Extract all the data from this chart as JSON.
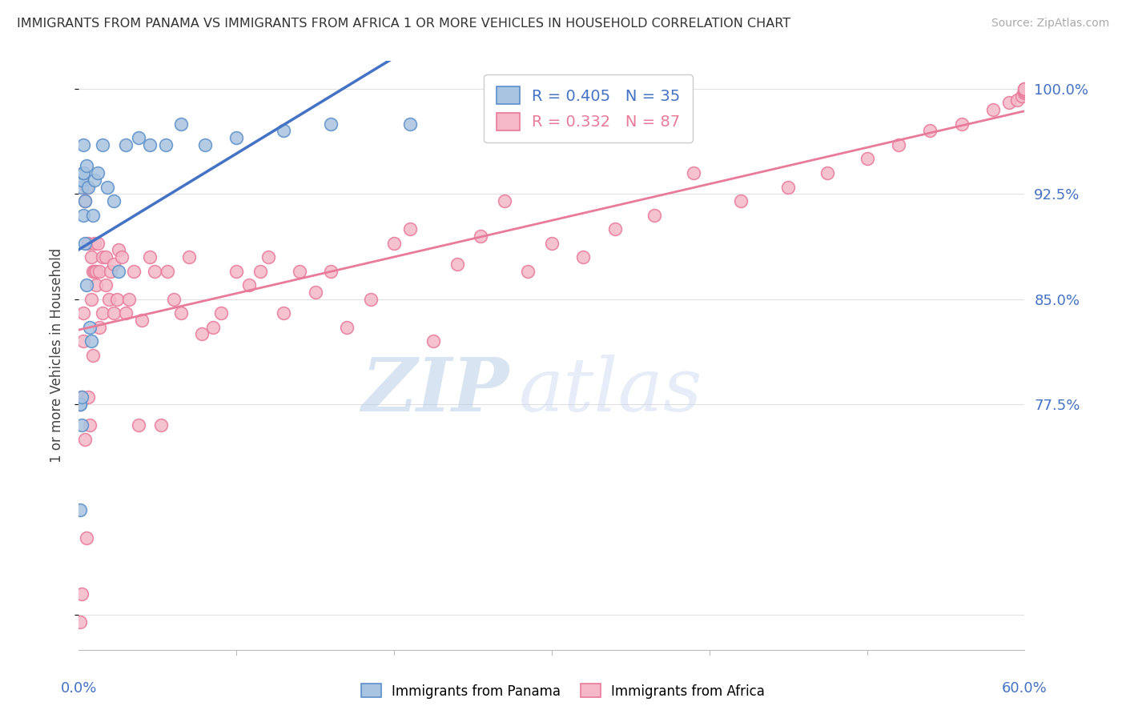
{
  "title": "IMMIGRANTS FROM PANAMA VS IMMIGRANTS FROM AFRICA 1 OR MORE VEHICLES IN HOUSEHOLD CORRELATION CHART",
  "source": "Source: ZipAtlas.com",
  "ylabel": "1 or more Vehicles in Household",
  "ytick_color": "#4472c4",
  "legend_r1": "R = 0.405",
  "legend_n1": "N = 35",
  "legend_r2": "R = 0.332",
  "legend_n2": "N = 87",
  "blue_scatter_face": "#a8c4e0",
  "blue_scatter_edge": "#5b8fc9",
  "pink_scatter_face": "#f4b8c8",
  "pink_scatter_edge": "#e87a9a",
  "trendline_blue": "#4472c4",
  "trendline_pink": "#e87a9a",
  "panama_points_x": [
    0.001,
    0.001,
    0.001,
    0.002,
    0.002,
    0.002,
    0.002,
    0.003,
    0.003,
    0.003,
    0.003,
    0.004,
    0.004,
    0.005,
    0.005,
    0.006,
    0.007,
    0.008,
    0.009,
    0.01,
    0.012,
    0.015,
    0.018,
    0.022,
    0.025,
    0.03,
    0.038,
    0.045,
    0.055,
    0.065,
    0.08,
    0.1,
    0.13,
    0.16,
    0.21
  ],
  "panama_points_y": [
    0.775,
    0.775,
    0.7,
    0.76,
    0.78,
    0.93,
    0.935,
    0.91,
    0.94,
    0.96,
    0.94,
    0.89,
    0.92,
    0.945,
    0.86,
    0.93,
    0.83,
    0.82,
    0.91,
    0.935,
    0.94,
    0.96,
    0.93,
    0.92,
    0.87,
    0.96,
    0.965,
    0.96,
    0.96,
    0.975,
    0.96,
    0.965,
    0.97,
    0.975,
    0.975
  ],
  "africa_points_x": [
    0.001,
    0.002,
    0.002,
    0.003,
    0.003,
    0.004,
    0.004,
    0.005,
    0.005,
    0.006,
    0.006,
    0.007,
    0.008,
    0.008,
    0.009,
    0.009,
    0.01,
    0.01,
    0.011,
    0.011,
    0.012,
    0.013,
    0.013,
    0.015,
    0.015,
    0.017,
    0.017,
    0.019,
    0.02,
    0.022,
    0.022,
    0.024,
    0.025,
    0.027,
    0.03,
    0.032,
    0.035,
    0.038,
    0.04,
    0.045,
    0.048,
    0.052,
    0.056,
    0.06,
    0.065,
    0.07,
    0.078,
    0.085,
    0.09,
    0.1,
    0.108,
    0.115,
    0.12,
    0.13,
    0.14,
    0.15,
    0.16,
    0.17,
    0.185,
    0.2,
    0.21,
    0.225,
    0.24,
    0.255,
    0.27,
    0.285,
    0.3,
    0.32,
    0.34,
    0.365,
    0.39,
    0.42,
    0.45,
    0.475,
    0.5,
    0.52,
    0.54,
    0.56,
    0.58,
    0.59,
    0.595,
    0.598,
    0.6,
    0.6,
    0.6,
    0.6,
    0.6
  ],
  "africa_points_y": [
    0.62,
    0.64,
    0.78,
    0.82,
    0.84,
    0.75,
    0.92,
    0.93,
    0.68,
    0.78,
    0.89,
    0.76,
    0.85,
    0.88,
    0.81,
    0.87,
    0.87,
    0.89,
    0.86,
    0.87,
    0.89,
    0.83,
    0.87,
    0.84,
    0.88,
    0.86,
    0.88,
    0.85,
    0.87,
    0.84,
    0.875,
    0.85,
    0.885,
    0.88,
    0.84,
    0.85,
    0.87,
    0.76,
    0.835,
    0.88,
    0.87,
    0.76,
    0.87,
    0.85,
    0.84,
    0.88,
    0.825,
    0.83,
    0.84,
    0.87,
    0.86,
    0.87,
    0.88,
    0.84,
    0.87,
    0.855,
    0.87,
    0.83,
    0.85,
    0.89,
    0.9,
    0.82,
    0.875,
    0.895,
    0.92,
    0.87,
    0.89,
    0.88,
    0.9,
    0.91,
    0.94,
    0.92,
    0.93,
    0.94,
    0.95,
    0.96,
    0.97,
    0.975,
    0.985,
    0.99,
    0.992,
    0.995,
    0.997,
    0.998,
    0.999,
    1.0,
    1.0
  ],
  "xlim": [
    0.0,
    0.6
  ],
  "ylim": [
    0.6,
    1.02
  ],
  "yticks": [
    0.625,
    0.775,
    0.85,
    0.925,
    1.0
  ],
  "ytick_labels": [
    "",
    "77.5%",
    "85.0%",
    "92.5%",
    "100.0%"
  ],
  "xtick_positions": [
    0.0,
    0.1,
    0.2,
    0.3,
    0.4,
    0.5,
    0.6
  ],
  "watermark_zip": "ZIP",
  "watermark_atlas": "atlas",
  "background_color": "#ffffff",
  "grid_color": "#e0e0e0"
}
